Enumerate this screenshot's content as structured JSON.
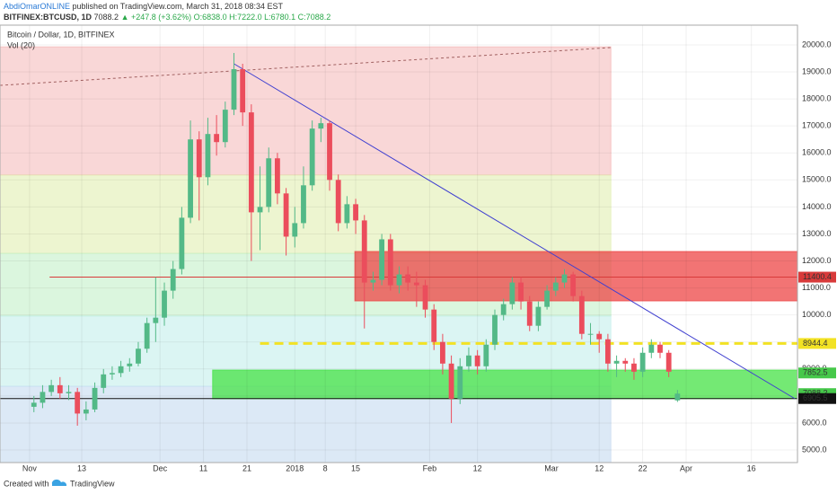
{
  "header": {
    "author": "AbdiOmarONLINE",
    "published": "published on TradingView.com, March 31, 2018 08:34 EST",
    "symbol": "BITFINEX:BTCUSD, 1D",
    "last": "7088.2",
    "arrow": "▲",
    "change": "+247.8 (+3.62%)",
    "ohlc": "O:6838.0 H:7222.0 L:6780.1 C:7088.2"
  },
  "footer": {
    "created": "Created with",
    "brand": "TradingView"
  },
  "chart_data": {
    "type": "candlestick",
    "title": "Bitcoin / Dollar, 1D, BITFINEX",
    "subtitle": "Vol (20)",
    "up_color": "#53b987",
    "down_color": "#eb4d5c",
    "grid": true,
    "xlim": [
      -6.8,
      176.6
    ],
    "ylim": [
      4535,
      20730
    ],
    "xticks": [
      {
        "value": 0,
        "label": "Nov"
      },
      {
        "value": 12,
        "label": "13"
      },
      {
        "value": 30,
        "label": "Dec"
      },
      {
        "value": 40,
        "label": "11"
      },
      {
        "value": 50,
        "label": "21"
      },
      {
        "value": 61,
        "label": "2018"
      },
      {
        "value": 68,
        "label": "8"
      },
      {
        "value": 75,
        "label": "15"
      },
      {
        "value": 92,
        "label": "Feb"
      },
      {
        "value": 103,
        "label": "12"
      },
      {
        "value": 120,
        "label": "Mar"
      },
      {
        "value": 131,
        "label": "12"
      },
      {
        "value": 141,
        "label": "22"
      },
      {
        "value": 151,
        "label": "Apr"
      },
      {
        "value": 166,
        "label": "16"
      }
    ],
    "yticks": [
      {
        "value": 5000,
        "label": "5000.0"
      },
      {
        "value": 6000,
        "label": "6000.0"
      },
      {
        "value": 7000,
        "label": "7000.0"
      },
      {
        "value": 8000,
        "label": "8000.0"
      },
      {
        "value": 9000,
        "label": "9000.0"
      },
      {
        "value": 10000,
        "label": "10000.0"
      },
      {
        "value": 11000,
        "label": "11000.0"
      },
      {
        "value": 12000,
        "label": "12000.0"
      },
      {
        "value": 13000,
        "label": "13000.0"
      },
      {
        "value": 14000,
        "label": "14000.0"
      },
      {
        "value": 15000,
        "label": "15000.0"
      },
      {
        "value": 16000,
        "label": "16000.0"
      },
      {
        "value": 17000,
        "label": "17000.0"
      },
      {
        "value": 18000,
        "label": "18000.0"
      },
      {
        "value": 19000,
        "label": "19000.0"
      },
      {
        "value": 20000,
        "label": "20000.0"
      }
    ],
    "x": [
      1,
      3,
      5,
      7,
      9,
      11,
      13,
      15,
      17,
      19,
      21,
      23,
      25,
      27,
      29,
      31,
      33,
      35,
      37,
      39,
      41,
      43,
      45,
      47,
      49,
      51,
      53,
      55,
      57,
      59,
      61,
      63,
      65,
      67,
      69,
      71,
      73,
      75,
      77,
      79,
      81,
      83,
      85,
      87,
      89,
      91,
      93,
      95,
      97,
      99,
      101,
      103,
      105,
      107,
      109,
      111,
      113,
      115,
      117,
      119,
      121,
      123,
      125,
      127,
      129,
      131,
      133,
      135,
      137,
      139,
      141,
      143,
      145,
      147,
      149
    ],
    "open": [
      6600,
      6750,
      7150,
      7400,
      7100,
      7150,
      6350,
      6500,
      7300,
      7800,
      7850,
      8100,
      8200,
      8750,
      9700,
      9900,
      10900,
      11700,
      13600,
      16500,
      15100,
      16700,
      16400,
      17600,
      19100,
      17500,
      13800,
      14000,
      15800,
      14500,
      12900,
      13400,
      14800,
      16900,
      17100,
      15000,
      13400,
      14100,
      13500,
      11200,
      11300,
      12800,
      11100,
      11500,
      11200,
      11100,
      10200,
      9000,
      8200,
      6900,
      8100,
      8500,
      8100,
      8900,
      10000,
      10400,
      11200,
      10500,
      9600,
      10300,
      10900,
      11200,
      11500,
      10700,
      9300,
      9300,
      9100,
      8200,
      8300,
      8200,
      7900,
      8600,
      8900,
      8600,
      6838.0
    ],
    "high": [
      7000,
      7400,
      7600,
      7700,
      7400,
      7300,
      6800,
      7500,
      8000,
      8100,
      8300,
      8400,
      9000,
      9900,
      11400,
      11200,
      12000,
      14000,
      17200,
      16800,
      17300,
      17400,
      17900,
      19700,
      19300,
      17800,
      15500,
      16200,
      16000,
      14700,
      14000,
      15500,
      17200,
      17300,
      17200,
      15200,
      14400,
      14300,
      13700,
      11600,
      13000,
      13000,
      11800,
      11800,
      11600,
      11300,
      10400,
      9300,
      8500,
      8400,
      8800,
      8700,
      9100,
      10200,
      10600,
      11400,
      11400,
      10700,
      10500,
      11100,
      11400,
      11700,
      11600,
      10900,
      9700,
      9400,
      9300,
      8500,
      8400,
      8400,
      8800,
      9100,
      9000,
      8700,
      7222.0
    ],
    "low": [
      6400,
      6550,
      7000,
      6900,
      6850,
      5900,
      6100,
      6400,
      7100,
      7600,
      7700,
      7900,
      8100,
      8600,
      9000,
      9600,
      10600,
      11500,
      13400,
      13500,
      14800,
      15900,
      16200,
      17400,
      17000,
      12000,
      12400,
      13800,
      14100,
      12200,
      12500,
      13200,
      14600,
      16400,
      14600,
      13100,
      13200,
      13000,
      9500,
      10900,
      11100,
      10900,
      10800,
      10900,
      10300,
      9900,
      8700,
      7800,
      6000,
      6700,
      7900,
      7800,
      7900,
      8700,
      9800,
      10200,
      10200,
      9400,
      9400,
      10200,
      10700,
      11000,
      10500,
      9100,
      8900,
      8600,
      7900,
      7700,
      7900,
      7600,
      7700,
      8400,
      8400,
      7700,
      6780.1
    ],
    "close": [
      6750,
      7150,
      7400,
      7100,
      7150,
      6350,
      6500,
      7300,
      7800,
      7850,
      8100,
      8200,
      8750,
      9700,
      9900,
      10900,
      11700,
      13600,
      16500,
      15100,
      16700,
      16400,
      17600,
      19100,
      17500,
      13800,
      14000,
      15800,
      14500,
      12900,
      13400,
      14800,
      16900,
      17100,
      15000,
      13400,
      14100,
      13500,
      11200,
      11300,
      12800,
      11100,
      11500,
      11200,
      11100,
      10200,
      9000,
      8200,
      6900,
      8100,
      8500,
      8100,
      8900,
      10000,
      10400,
      11200,
      10500,
      9600,
      10300,
      10900,
      11200,
      11500,
      10700,
      9300,
      9300,
      9100,
      8200,
      8300,
      8200,
      7900,
      8600,
      8900,
      8600,
      7900,
      7088.2
    ],
    "zones": [
      {
        "x": [
          -6.8,
          133.7
        ],
        "y": [
          15180,
          19930
        ],
        "color": "rgba(232,110,110,0.28)"
      },
      {
        "x": [
          -6.8,
          133.7
        ],
        "y": [
          12280,
          15180
        ],
        "color": "rgba(222,236,170,0.55)"
      },
      {
        "x": [
          -6.8,
          133.7
        ],
        "y": [
          9960,
          12280
        ],
        "color": "rgba(190,238,195,0.55)"
      },
      {
        "x": [
          -6.8,
          133.7
        ],
        "y": [
          7360,
          9960
        ],
        "color": "rgba(195,238,235,0.6)"
      },
      {
        "x": [
          -6.8,
          133.7
        ],
        "y": [
          4535,
          7360
        ],
        "color": "rgba(196,218,240,0.6)"
      },
      {
        "x": [
          74.8,
          176.6
        ],
        "y": [
          10520,
          12350
        ],
        "color": "rgba(238,70,70,0.75)"
      },
      {
        "x": [
          42.1,
          176.6
        ],
        "y": [
          6900,
          7960
        ],
        "color": "rgba(70,225,70,0.75)"
      }
    ],
    "lines": [
      {
        "x": [
          47,
          176
        ],
        "y": [
          19300,
          6900
        ],
        "color": "#4040d0",
        "dash": false
      },
      {
        "x": [
          -6.8,
          133.7
        ],
        "y": [
          18500,
          19900
        ],
        "color": "#a06060",
        "dash": true
      }
    ],
    "levels": [
      {
        "value": 11400.4,
        "from": 4.6,
        "color": "#d83a3a",
        "text_color": "#fff",
        "dash": false
      },
      {
        "value": 8944.4,
        "from": 53,
        "color": "#f2e224",
        "text_color": "#000",
        "dash": true
      },
      {
        "value": 7852.5,
        "from": 176.6,
        "color": "#46c84a",
        "text_color": "#000",
        "dash": false
      },
      {
        "value": 7088.2,
        "from": 176.6,
        "color": "#46c84a",
        "text_color": "#000",
        "dash": false
      },
      {
        "value": 6905.5,
        "from": -6.8,
        "color": "#111",
        "text_color": "#fff",
        "dash": false
      }
    ]
  }
}
